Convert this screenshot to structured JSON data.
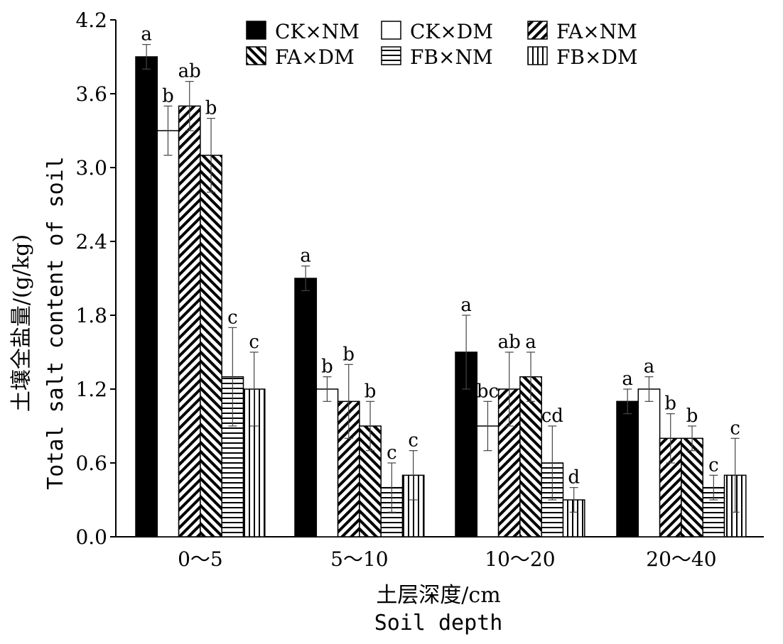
{
  "chart_data": {
    "type": "bar",
    "title": "",
    "xlabel": "土层深度/cm",
    "xlabel_en": "Soil depth",
    "ylabel": "土壤全盐量/(g/kg)",
    "ylabel_en": "Total salt content of soil",
    "ylim": [
      0,
      4.2
    ],
    "yticks": [
      "0.0",
      "0.6",
      "1.2",
      "1.8",
      "2.4",
      "3.0",
      "3.6",
      "4.2"
    ],
    "ytick_values": [
      0,
      0.6,
      1.2,
      1.8,
      2.4,
      3.0,
      3.6,
      4.2
    ],
    "categories": [
      "0～5",
      "5～10",
      "10～20",
      "20～40"
    ],
    "legend_position": "top",
    "series": [
      {
        "name": "CK×NM",
        "pattern": "solid",
        "values": [
          3.9,
          2.1,
          1.5,
          1.1
        ],
        "errors": [
          0.1,
          0.1,
          0.3,
          0.1
        ],
        "letters": [
          "a",
          "a",
          "a",
          "a"
        ]
      },
      {
        "name": "CK×DM",
        "pattern": "empty",
        "values": [
          3.3,
          1.2,
          0.9,
          1.2
        ],
        "errors": [
          0.2,
          0.1,
          0.2,
          0.1
        ],
        "letters": [
          "b",
          "b",
          "bc",
          "a"
        ]
      },
      {
        "name": "FA×NM",
        "pattern": "diag-up",
        "values": [
          3.5,
          1.1,
          1.2,
          0.8
        ],
        "errors": [
          0.2,
          0.3,
          0.3,
          0.2
        ],
        "letters": [
          "ab",
          "b",
          "ab",
          "b"
        ]
      },
      {
        "name": "FA×DM",
        "pattern": "diag-down",
        "values": [
          3.1,
          0.9,
          1.3,
          0.8
        ],
        "errors": [
          0.3,
          0.2,
          0.2,
          0.1
        ],
        "letters": [
          "b",
          "b",
          "a",
          "b"
        ]
      },
      {
        "name": "FB×NM",
        "pattern": "horizontal",
        "values": [
          1.3,
          0.4,
          0.6,
          0.4
        ],
        "errors": [
          0.4,
          0.2,
          0.3,
          0.1
        ],
        "letters": [
          "c",
          "c",
          "cd",
          "c"
        ]
      },
      {
        "name": "FB×DM",
        "pattern": "vertical",
        "values": [
          1.2,
          0.5,
          0.3,
          0.5
        ],
        "errors": [
          0.3,
          0.2,
          0.1,
          0.3
        ],
        "letters": [
          "c",
          "c",
          "d",
          "c"
        ]
      }
    ]
  }
}
